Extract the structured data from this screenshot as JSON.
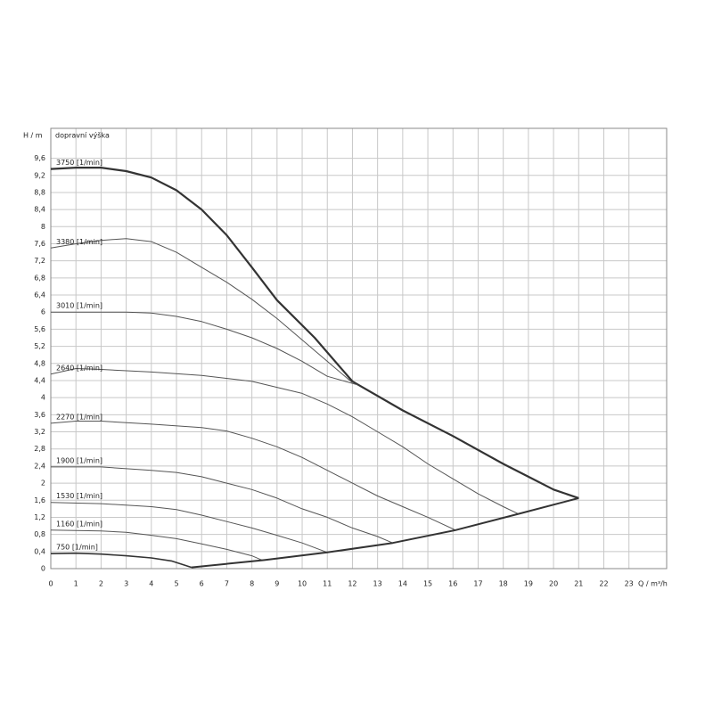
{
  "chart_data": {
    "type": "line",
    "y_label": "H / m",
    "y_sublabel": "dopravní výška",
    "x_label": "Q / m³/h",
    "xlim": [
      0,
      24.5
    ],
    "xticks": [
      0,
      1,
      2,
      3,
      4,
      5,
      6,
      7,
      8,
      9,
      10,
      11,
      12,
      13,
      14,
      15,
      16,
      17,
      18,
      19,
      20,
      21,
      22,
      23
    ],
    "ylim": [
      0,
      10.3
    ],
    "yticks": [
      0,
      {
        "value": 0.4,
        "label": "0,4"
      },
      {
        "value": 0.8,
        "label": "0,8"
      },
      {
        "value": 1.2,
        "label": "1,2"
      },
      {
        "value": 1.6,
        "label": "1,6"
      },
      2,
      {
        "value": 2.4,
        "label": "2,4"
      },
      {
        "value": 2.8,
        "label": "2,8"
      },
      {
        "value": 3.2,
        "label": "3,2"
      },
      {
        "value": 3.6,
        "label": "3,6"
      },
      4,
      {
        "value": 4.4,
        "label": "4,4"
      },
      {
        "value": 4.8,
        "label": "4,8"
      },
      {
        "value": 5.2,
        "label": "5,2"
      },
      {
        "value": 5.6,
        "label": "5,6"
      },
      6,
      {
        "value": 6.4,
        "label": "6,4"
      },
      {
        "value": 6.8,
        "label": "6,8"
      },
      {
        "value": 7.2,
        "label": "7,2"
      },
      {
        "value": 7.6,
        "label": "7,6"
      },
      8,
      {
        "value": 8.4,
        "label": "8,4"
      },
      {
        "value": 8.8,
        "label": "8,8"
      },
      {
        "value": 9.2,
        "label": "9,2"
      },
      {
        "value": 9.6,
        "label": "9,6"
      }
    ],
    "grid": true,
    "series": [
      {
        "name": "3750 [1/min]",
        "color": "#333333",
        "width": 2.2,
        "x": [
          0,
          1,
          2,
          3,
          4,
          5,
          6,
          7,
          8,
          9,
          10.5,
          12,
          14,
          16,
          18,
          19,
          20,
          21
        ],
        "values": [
          9.35,
          9.38,
          9.38,
          9.3,
          9.15,
          8.85,
          8.4,
          7.8,
          7.05,
          6.28,
          5.4,
          4.38,
          3.7,
          3.1,
          2.45,
          2.15,
          1.85,
          1.65
        ]
      },
      {
        "name": "3380 [1/min]",
        "color": "#555555",
        "width": 1,
        "x": [
          0,
          1,
          2,
          3,
          4,
          5,
          6,
          7,
          8,
          9,
          10,
          11,
          12
        ],
        "values": [
          7.5,
          7.6,
          7.68,
          7.72,
          7.65,
          7.4,
          7.05,
          6.7,
          6.3,
          5.85,
          5.35,
          4.85,
          4.35
        ]
      },
      {
        "name": "3010 [1/min]",
        "color": "#555555",
        "width": 1,
        "x": [
          0,
          2,
          3,
          4,
          5,
          6,
          7,
          8,
          9,
          10,
          11,
          12.2
        ],
        "values": [
          6.0,
          6.0,
          6.0,
          5.98,
          5.9,
          5.78,
          5.6,
          5.4,
          5.15,
          4.85,
          4.5,
          4.3
        ]
      },
      {
        "name": "2640 [1/min]",
        "color": "#555555",
        "width": 1,
        "x": [
          0,
          1,
          2,
          4,
          6,
          8,
          10,
          11,
          12,
          13,
          14,
          15,
          16,
          17,
          18,
          18.6
        ],
        "values": [
          4.55,
          4.68,
          4.66,
          4.6,
          4.52,
          4.38,
          4.1,
          3.85,
          3.55,
          3.2,
          2.85,
          2.45,
          2.1,
          1.75,
          1.45,
          1.28
        ]
      },
      {
        "name": "2270 [1/min]",
        "color": "#555555",
        "width": 1,
        "x": [
          0,
          1,
          2,
          4,
          6,
          7,
          8,
          9,
          10,
          11,
          12,
          13,
          14,
          15,
          16.1
        ],
        "values": [
          3.4,
          3.45,
          3.45,
          3.38,
          3.3,
          3.22,
          3.05,
          2.85,
          2.6,
          2.3,
          2.0,
          1.7,
          1.45,
          1.2,
          0.9
        ]
      },
      {
        "name": "1900 [1/min]",
        "color": "#555555",
        "width": 1,
        "x": [
          0,
          2,
          4,
          5,
          6,
          7,
          8,
          9,
          10,
          11,
          12,
          13,
          13.6
        ],
        "values": [
          2.38,
          2.38,
          2.3,
          2.25,
          2.15,
          2.0,
          1.85,
          1.65,
          1.4,
          1.2,
          0.95,
          0.75,
          0.6
        ]
      },
      {
        "name": "1530 [1/min]",
        "color": "#555555",
        "width": 1,
        "x": [
          0,
          2,
          4,
          5,
          6,
          7,
          8,
          9,
          10,
          11
        ],
        "values": [
          1.55,
          1.52,
          1.45,
          1.38,
          1.25,
          1.1,
          0.95,
          0.78,
          0.6,
          0.38
        ]
      },
      {
        "name": "1160 [1/min]",
        "color": "#555555",
        "width": 1,
        "x": [
          0,
          2,
          3,
          4,
          5,
          6,
          7,
          8,
          8.4
        ],
        "values": [
          0.9,
          0.88,
          0.85,
          0.78,
          0.7,
          0.58,
          0.45,
          0.3,
          0.2
        ]
      },
      {
        "name": "750 [1/min]",
        "color": "#333333",
        "width": 1.6,
        "x": [
          0,
          1,
          2,
          3,
          4,
          4.8,
          5.6
        ],
        "values": [
          0.35,
          0.36,
          0.34,
          0.3,
          0.25,
          0.18,
          0.03
        ]
      },
      {
        "color": "#333333",
        "width": 2,
        "x": [
          5.6,
          8.5,
          11,
          13.6,
          16.1,
          18.6,
          21
        ],
        "values": [
          0.03,
          0.2,
          0.38,
          0.6,
          0.9,
          1.28,
          1.65
        ]
      }
    ]
  }
}
